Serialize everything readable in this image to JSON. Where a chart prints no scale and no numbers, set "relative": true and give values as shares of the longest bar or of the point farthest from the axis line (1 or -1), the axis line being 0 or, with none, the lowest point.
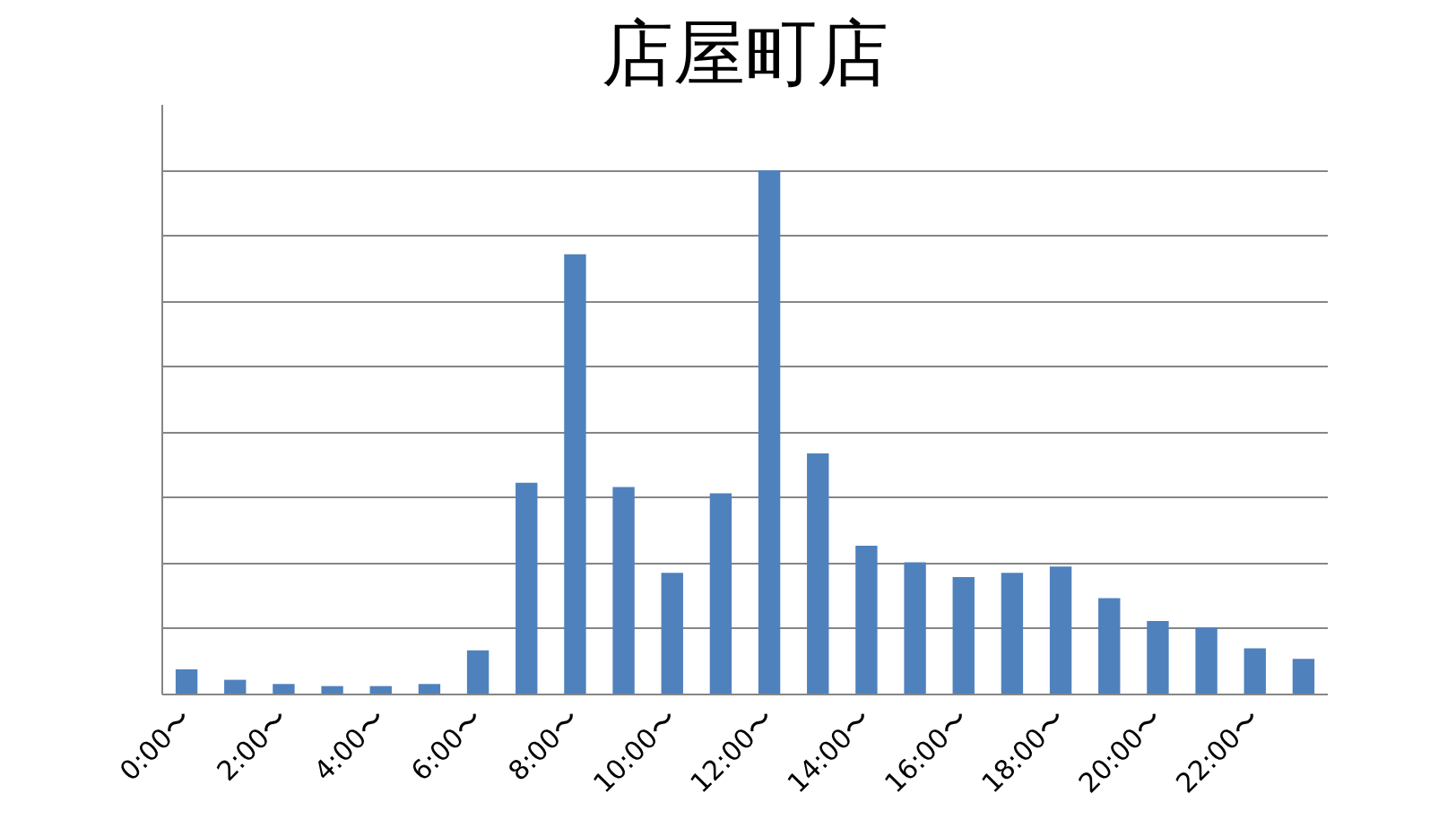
{
  "chart_data": {
    "type": "bar",
    "title": "店屋町店",
    "relative": true,
    "grid": "y",
    "color": "#4f81bd",
    "categories": [
      "0:00〜",
      null,
      "2:00〜",
      null,
      "4:00〜",
      null,
      "6:00〜",
      null,
      "8:00〜",
      null,
      "10:00〜",
      null,
      "12:00〜",
      null,
      "14:00〜",
      null,
      "16:00〜",
      null,
      "18:00〜",
      null,
      "20:00〜",
      null,
      "22:00〜",
      null
    ],
    "values": [
      0.048,
      0.028,
      0.02,
      0.016,
      0.016,
      0.02,
      0.084,
      0.404,
      0.84,
      0.396,
      0.232,
      0.384,
      1,
      0.46,
      0.284,
      0.252,
      0.224,
      0.232,
      0.244,
      0.184,
      0.14,
      0.128,
      0.088,
      0.068
    ]
  }
}
